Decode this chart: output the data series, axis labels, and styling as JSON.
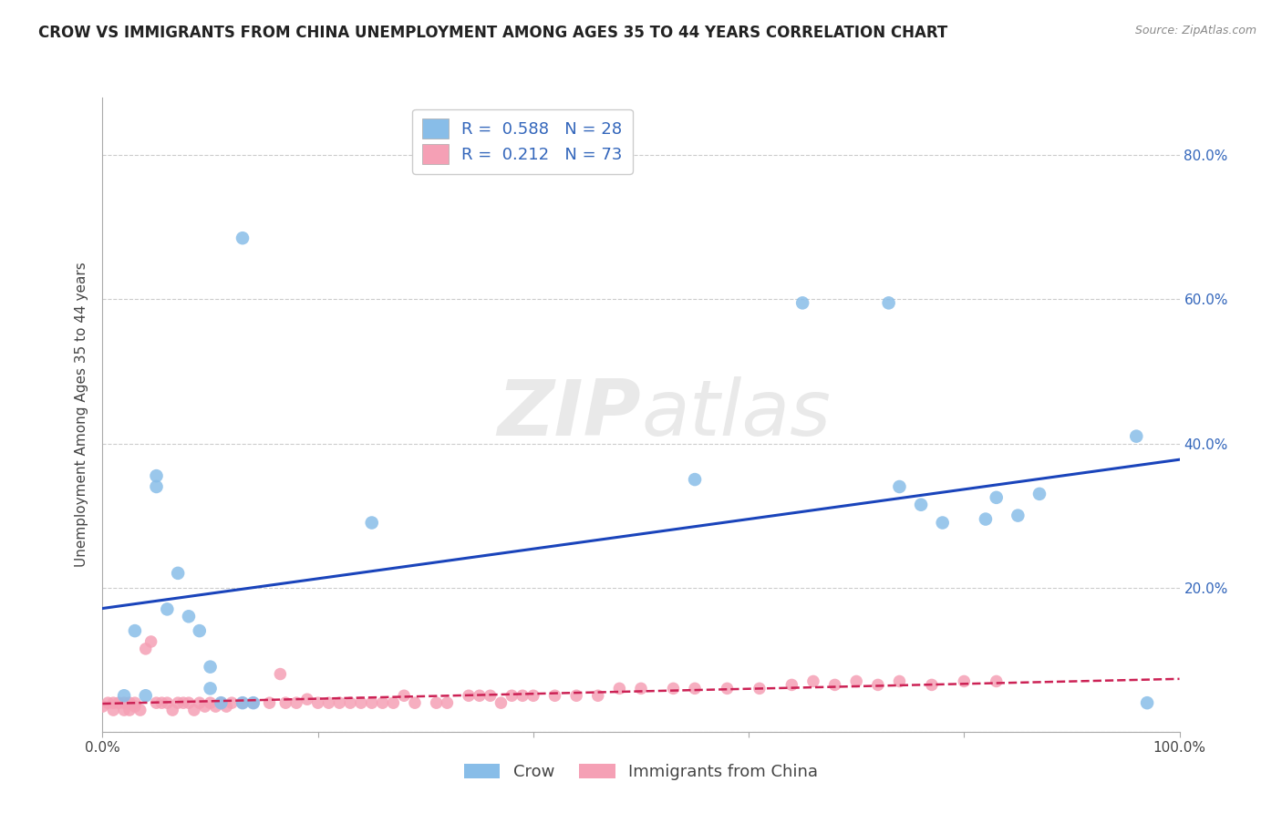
{
  "title": "CROW VS IMMIGRANTS FROM CHINA UNEMPLOYMENT AMONG AGES 35 TO 44 YEARS CORRELATION CHART",
  "source": "Source: ZipAtlas.com",
  "ylabel": "Unemployment Among Ages 35 to 44 years",
  "xlim": [
    0.0,
    1.0
  ],
  "ylim": [
    0.0,
    0.88
  ],
  "xticks": [
    0.0,
    0.2,
    0.4,
    0.6,
    0.8,
    1.0
  ],
  "xticklabels": [
    "0.0%",
    "",
    "",
    "",
    "",
    "100.0%"
  ],
  "ytick_vals": [
    0.0,
    0.2,
    0.4,
    0.6,
    0.8
  ],
  "yticklabels_right": [
    "",
    "20.0%",
    "40.0%",
    "60.0%",
    "80.0%"
  ],
  "crow_color": "#88bde8",
  "immigrants_color": "#f5a0b5",
  "crow_line_color": "#1a44bb",
  "immigrants_line_color": "#cc2255",
  "watermark_zip": "ZIP",
  "watermark_atlas": "atlas",
  "legend_label_1": "R =  0.588   N = 28",
  "legend_label_2": "R =  0.212   N = 73",
  "crow_scatter_x": [
    0.02,
    0.03,
    0.04,
    0.05,
    0.05,
    0.06,
    0.07,
    0.08,
    0.09,
    0.1,
    0.1,
    0.11,
    0.13,
    0.13,
    0.14,
    0.25,
    0.55,
    0.65,
    0.73,
    0.74,
    0.76,
    0.78,
    0.82,
    0.83,
    0.85,
    0.87,
    0.96,
    0.97
  ],
  "crow_scatter_y": [
    0.05,
    0.14,
    0.05,
    0.355,
    0.34,
    0.17,
    0.22,
    0.16,
    0.14,
    0.09,
    0.06,
    0.04,
    0.685,
    0.04,
    0.04,
    0.29,
    0.35,
    0.595,
    0.595,
    0.34,
    0.315,
    0.29,
    0.295,
    0.325,
    0.3,
    0.33,
    0.41,
    0.04
  ],
  "imm_scatter_x": [
    0.0,
    0.005,
    0.01,
    0.01,
    0.015,
    0.02,
    0.02,
    0.025,
    0.025,
    0.03,
    0.03,
    0.035,
    0.04,
    0.045,
    0.05,
    0.055,
    0.06,
    0.065,
    0.07,
    0.075,
    0.08,
    0.085,
    0.09,
    0.095,
    0.1,
    0.105,
    0.11,
    0.115,
    0.12,
    0.13,
    0.14,
    0.155,
    0.165,
    0.17,
    0.18,
    0.19,
    0.2,
    0.21,
    0.22,
    0.23,
    0.24,
    0.25,
    0.26,
    0.27,
    0.28,
    0.29,
    0.31,
    0.32,
    0.34,
    0.35,
    0.36,
    0.37,
    0.38,
    0.39,
    0.4,
    0.42,
    0.44,
    0.46,
    0.48,
    0.5,
    0.53,
    0.55,
    0.58,
    0.61,
    0.64,
    0.66,
    0.68,
    0.7,
    0.72,
    0.74,
    0.77,
    0.8,
    0.83
  ],
  "imm_scatter_y": [
    0.035,
    0.04,
    0.04,
    0.03,
    0.04,
    0.03,
    0.04,
    0.04,
    0.03,
    0.04,
    0.035,
    0.03,
    0.115,
    0.125,
    0.04,
    0.04,
    0.04,
    0.03,
    0.04,
    0.04,
    0.04,
    0.03,
    0.04,
    0.035,
    0.04,
    0.035,
    0.04,
    0.035,
    0.04,
    0.04,
    0.04,
    0.04,
    0.08,
    0.04,
    0.04,
    0.045,
    0.04,
    0.04,
    0.04,
    0.04,
    0.04,
    0.04,
    0.04,
    0.04,
    0.05,
    0.04,
    0.04,
    0.04,
    0.05,
    0.05,
    0.05,
    0.04,
    0.05,
    0.05,
    0.05,
    0.05,
    0.05,
    0.05,
    0.06,
    0.06,
    0.06,
    0.06,
    0.06,
    0.06,
    0.065,
    0.07,
    0.065,
    0.07,
    0.065,
    0.07,
    0.065,
    0.07,
    0.07
  ],
  "background_color": "#ffffff",
  "grid_color": "#cccccc",
  "title_fontsize": 12,
  "axis_label_fontsize": 11,
  "tick_fontsize": 11,
  "legend_fontsize": 13,
  "bottom_legend_labels": [
    "Crow",
    "Immigrants from China"
  ],
  "tick_color_blue": "#3366bb",
  "tick_color_dark": "#444444"
}
